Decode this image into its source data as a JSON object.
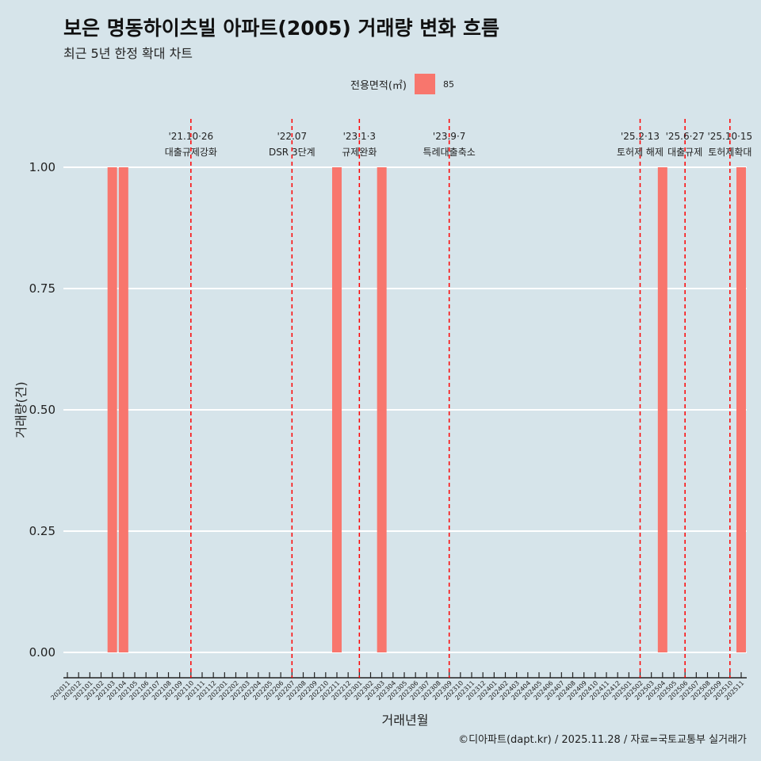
{
  "title": "보은 명동하이츠빌 아파트(2005) 거래량 변화 흐름",
  "subtitle": "최근 5년 한정 확대 차트",
  "caption": "©디아파트(dapt.kr) / 2025.11.28 / 자료=국토교통부 실거래가",
  "colors": {
    "bar": "#f8766d",
    "vline": "#ff0000",
    "bg": "#d6e4ea",
    "grid": "#ffffff"
  },
  "chart_data": {
    "type": "bar",
    "xlabel": "거래년월",
    "ylabel": "거래량(건)",
    "ylim": [
      0,
      1
    ],
    "yticks": [
      "0.00",
      "0.25",
      "0.50",
      "0.75",
      "1.00"
    ],
    "legend": {
      "title": "전용면적(㎡)",
      "entries": [
        "85"
      ],
      "placement": "top"
    },
    "categories": [
      "202011",
      "202012",
      "202101",
      "202102",
      "202103",
      "202104",
      "202105",
      "202106",
      "202107",
      "202108",
      "202109",
      "202110",
      "202111",
      "202112",
      "202201",
      "202202",
      "202203",
      "202204",
      "202205",
      "202206",
      "202207",
      "202208",
      "202209",
      "202210",
      "202211",
      "202212",
      "202301",
      "202302",
      "202303",
      "202304",
      "202305",
      "202306",
      "202307",
      "202308",
      "202309",
      "202310",
      "202311",
      "202312",
      "202401",
      "202402",
      "202403",
      "202404",
      "202405",
      "202406",
      "202407",
      "202408",
      "202409",
      "202410",
      "202411",
      "202412",
      "202501",
      "202502",
      "202503",
      "202504",
      "202505",
      "202506",
      "202507",
      "202508",
      "202509",
      "202510",
      "202511"
    ],
    "series": [
      {
        "name": "85",
        "bars": [
          {
            "x": "202103",
            "value": 1
          },
          {
            "x": "202104",
            "value": 1
          },
          {
            "x": "202211",
            "value": 1
          },
          {
            "x": "202303",
            "value": 1
          },
          {
            "x": "202504",
            "value": 1
          },
          {
            "x": "202511",
            "value": 1
          }
        ]
      }
    ],
    "annotations": [
      {
        "x": "202110",
        "date": "'21.10·26",
        "label": "대출규제강화"
      },
      {
        "x": "202207",
        "date": "'22.07",
        "label": "DSR 3단계"
      },
      {
        "x": "202301",
        "date": "'23.1·3",
        "label": "규제완화"
      },
      {
        "x": "202309",
        "date": "'23.9·7",
        "label": "특례대출축소"
      },
      {
        "x": "202502",
        "date": "'25.2·13",
        "label": "토허제 해제"
      },
      {
        "x": "202506",
        "date": "'25.6·27",
        "label": "대출규제"
      },
      {
        "x": "202510",
        "date": "'25.10·15",
        "label": "토허제확대"
      }
    ]
  }
}
